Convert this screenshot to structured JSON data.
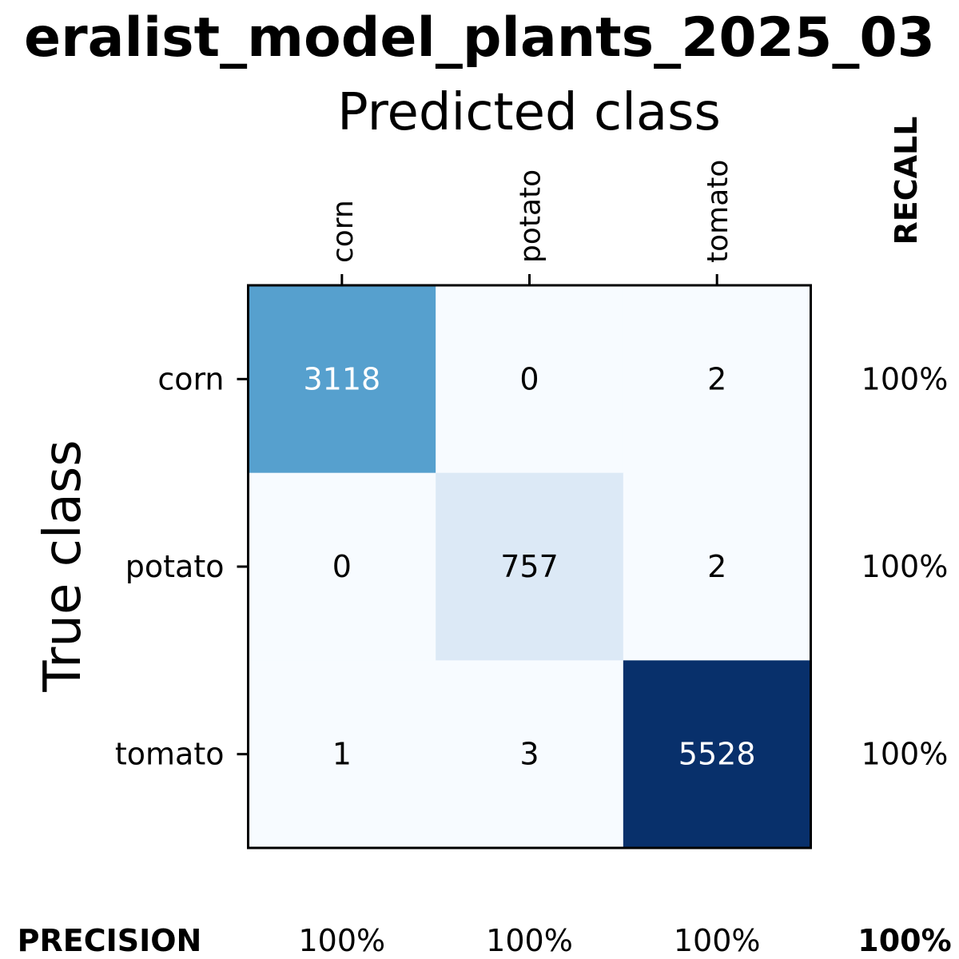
{
  "chart_data": {
    "type": "heatmap",
    "title": "eralist_model_plants_2025_03",
    "xlabel": "Predicted class",
    "ylabel": "True class",
    "classes": [
      "corn",
      "potato",
      "tomato"
    ],
    "matrix": [
      [
        3118,
        0,
        2
      ],
      [
        0,
        757,
        2
      ],
      [
        1,
        3,
        5528
      ]
    ],
    "recall_label": "RECALL",
    "recall": [
      "100%",
      "100%",
      "100%"
    ],
    "precision_label": "PRECISION",
    "precision": [
      "100%",
      "100%",
      "100%"
    ],
    "overall": "100%",
    "colormap": "Blues"
  }
}
